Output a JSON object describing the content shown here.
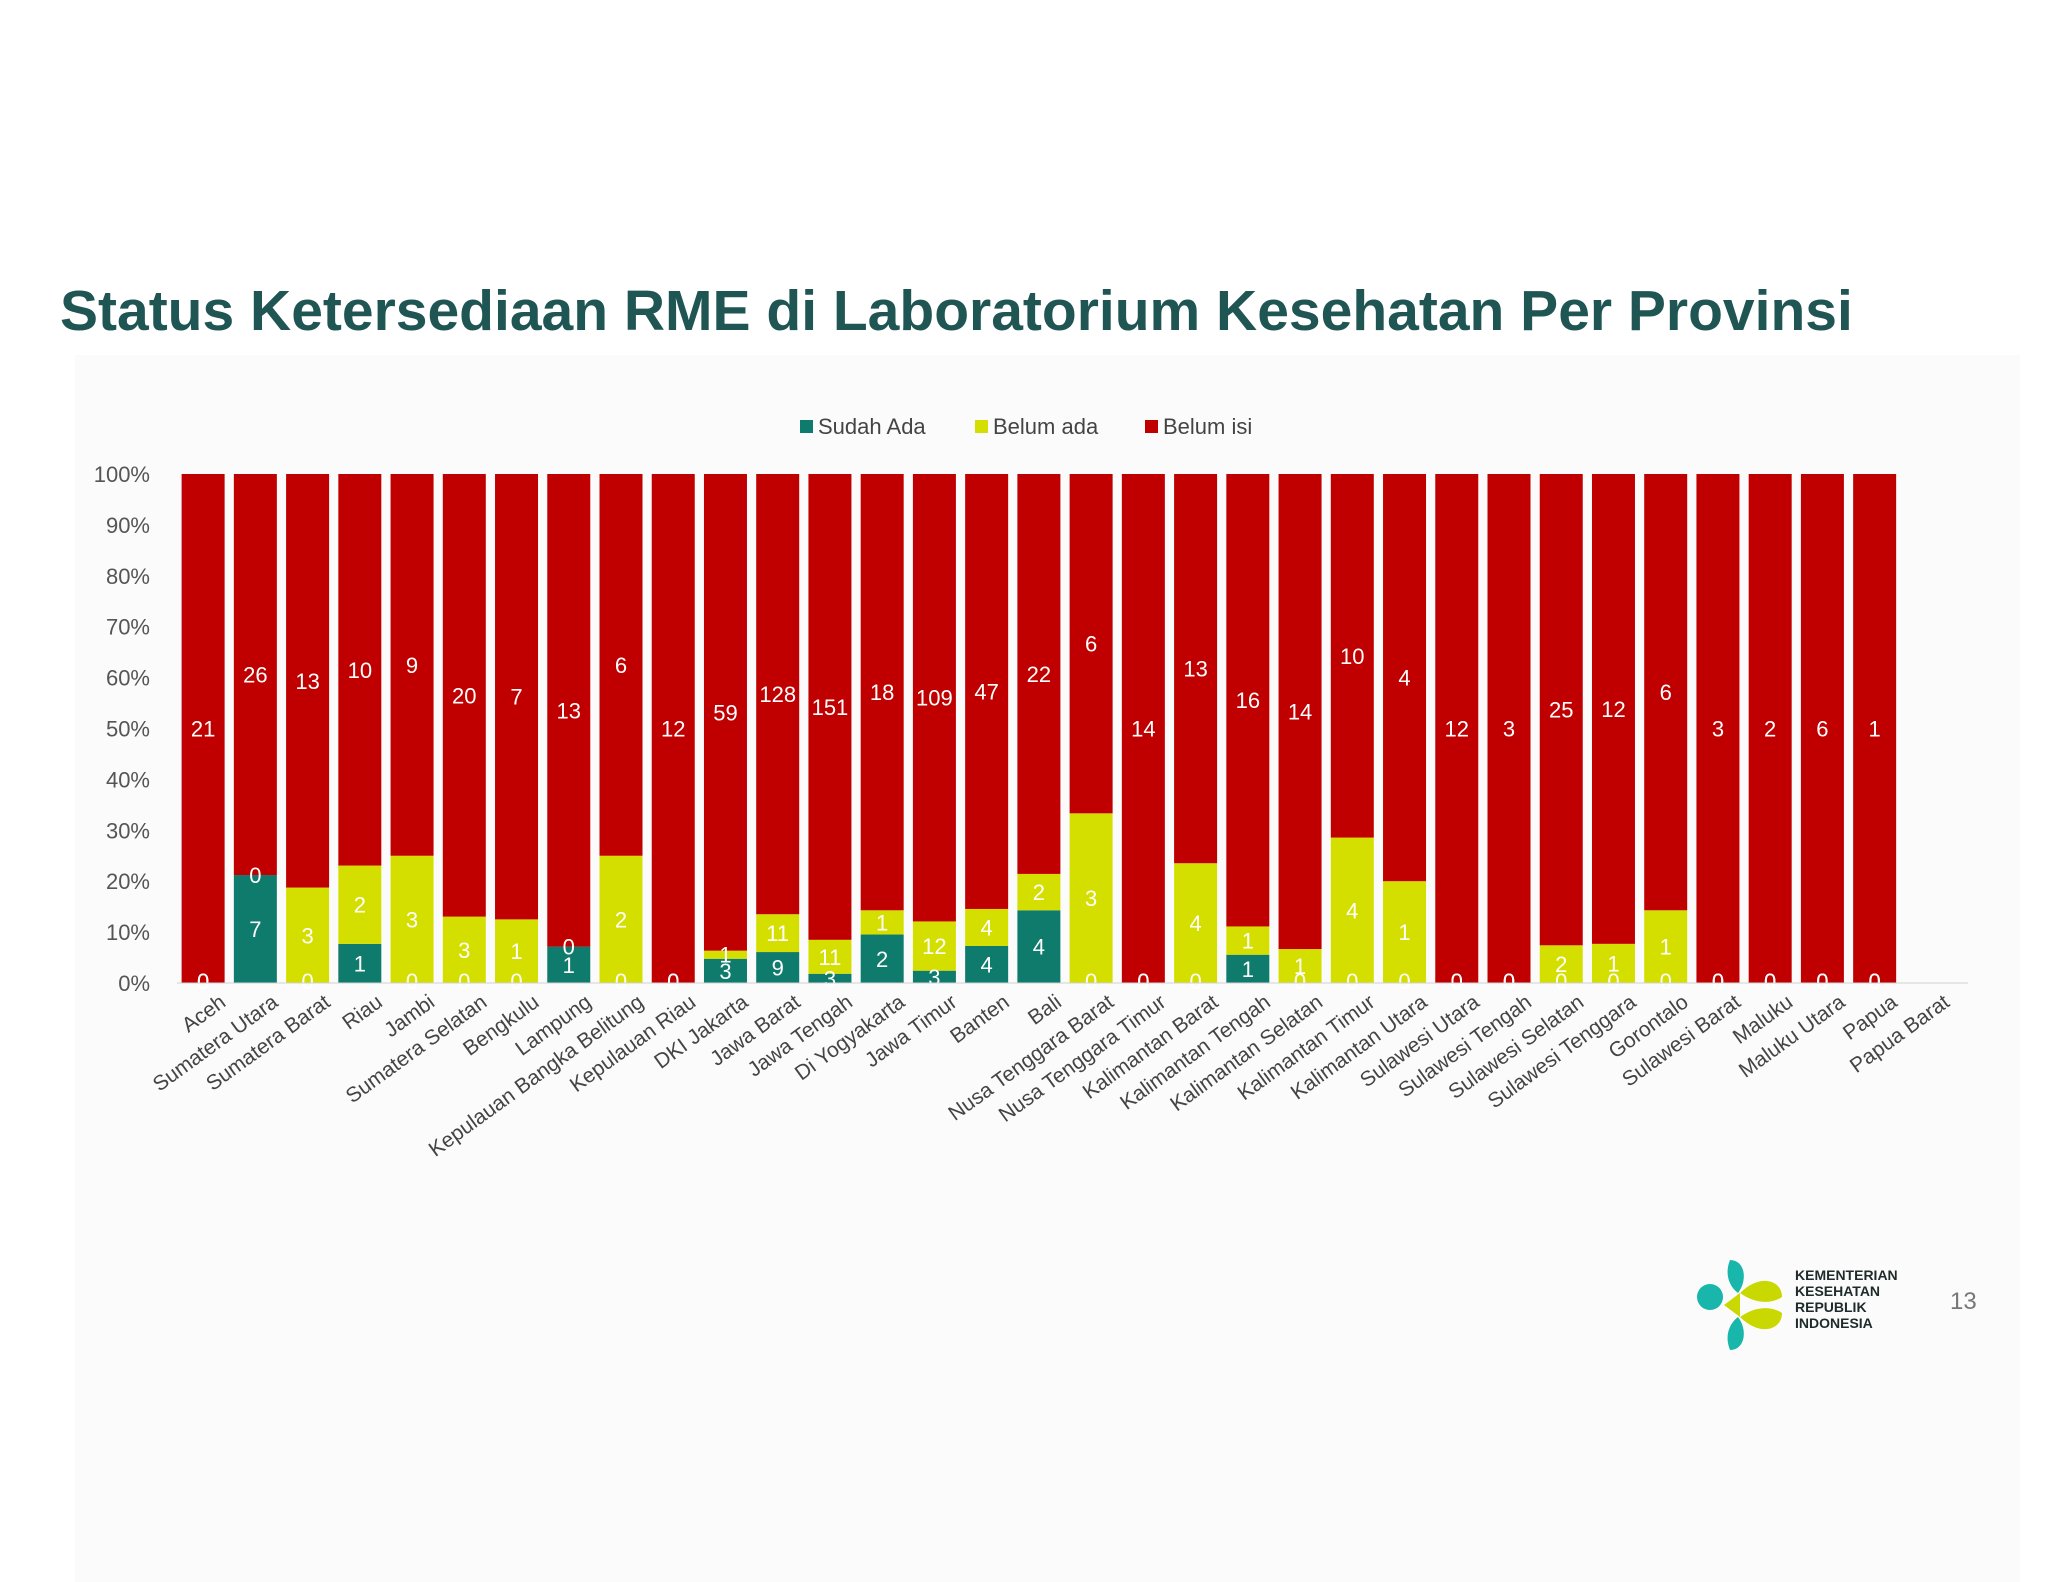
{
  "title": "Status Ketersediaan RME di Laboratorium Kesehatan Per Provinsi",
  "page_number": "13",
  "logo": {
    "lines": [
      "KEMENTERIAN",
      "KESEHATAN",
      "REPUBLIK",
      "INDONESIA"
    ]
  },
  "colors": {
    "sudah_ada": "#0f7b6c",
    "belum_ada": "#d4df00",
    "belum_isi": "#c00000",
    "logo_teal": "#18b6ab",
    "logo_yellow": "#c9d800"
  },
  "chart_data": {
    "type": "bar",
    "stacked": "percent",
    "title": "",
    "xlabel": "",
    "ylabel": "",
    "ylim": [
      0,
      100
    ],
    "y_ticks": [
      "0%",
      "10%",
      "20%",
      "30%",
      "40%",
      "50%",
      "60%",
      "70%",
      "80%",
      "90%",
      "100%"
    ],
    "legend_position": "top-center",
    "grid": false,
    "categories": [
      "Aceh",
      "Sumatera Utara",
      "Sumatera Barat",
      "Riau",
      "Jambi",
      "Sumatera Selatan",
      "Bengkulu",
      "Lampung",
      "Kepulauan Bangka Belitung",
      "Kepulauan Riau",
      "DKI Jakarta",
      "Jawa Barat",
      "Jawa Tengah",
      "Di Yogyakarta",
      "Jawa Timur",
      "Banten",
      "Bali",
      "Nusa Tenggara Barat",
      "Nusa Tenggara Timur",
      "Kalimantan Barat",
      "Kalimantan Tengah",
      "Kalimantan Selatan",
      "Kalimantan Timur",
      "Kalimantan Utara",
      "Sulawesi Utara",
      "Sulawesi Tengah",
      "Sulawesi Selatan",
      "Sulawesi Tenggara",
      "Gorontalo",
      "Sulawesi Barat",
      "Maluku",
      "Maluku Utara",
      "Papua",
      "Papua Barat"
    ],
    "series": [
      {
        "name": "Sudah Ada",
        "color": "#0f7b6c",
        "values": [
          0,
          7,
          0,
          1,
          0,
          0,
          0,
          1,
          0,
          0,
          3,
          9,
          3,
          2,
          3,
          4,
          4,
          0,
          0,
          0,
          1,
          0,
          0,
          0,
          0,
          0,
          0,
          0,
          0,
          0,
          0,
          0,
          0,
          0
        ]
      },
      {
        "name": "Belum ada",
        "color": "#d4df00",
        "values": [
          0,
          0,
          3,
          2,
          3,
          3,
          1,
          0,
          2,
          0,
          1,
          11,
          11,
          1,
          12,
          4,
          2,
          3,
          0,
          4,
          1,
          1,
          4,
          1,
          0,
          0,
          2,
          1,
          1,
          0,
          0,
          0,
          0,
          0
        ]
      },
      {
        "name": "Belum isi",
        "color": "#c00000",
        "values": [
          21,
          26,
          13,
          10,
          9,
          20,
          7,
          13,
          6,
          12,
          59,
          128,
          151,
          18,
          109,
          47,
          22,
          6,
          14,
          13,
          16,
          14,
          10,
          4,
          12,
          3,
          25,
          12,
          6,
          3,
          2,
          6,
          1,
          0
        ]
      }
    ]
  }
}
